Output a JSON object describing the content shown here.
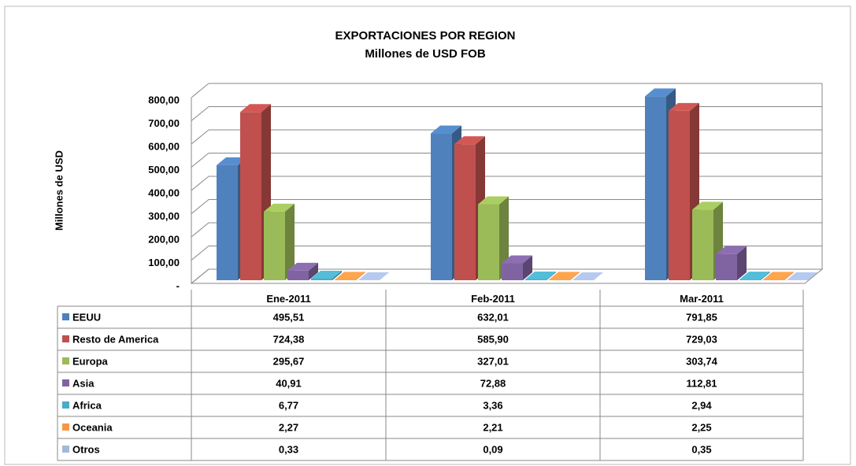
{
  "chart_data": {
    "type": "bar3d",
    "title": "EXPORTACIONES POR REGION",
    "subtitle": "Millones de USD FOB",
    "y_label": "Millones de USD",
    "categories": [
      "Ene-2011",
      "Feb-2011",
      "Mar-2011"
    ],
    "series": [
      {
        "name": "EEUU",
        "color": "#4f81bd",
        "values": [
          495.51,
          632.01,
          791.85
        ],
        "value_labels": [
          "495,51",
          "632,01",
          "791,85"
        ]
      },
      {
        "name": "Resto de America",
        "color": "#c0504d",
        "values": [
          724.38,
          585.9,
          729.03
        ],
        "value_labels": [
          "724,38",
          "585,90",
          "729,03"
        ]
      },
      {
        "name": "Europa",
        "color": "#9bbb59",
        "values": [
          295.67,
          327.01,
          303.74
        ],
        "value_labels": [
          "295,67",
          "327,01",
          "303,74"
        ]
      },
      {
        "name": "Asia",
        "color": "#8064a2",
        "values": [
          40.91,
          72.88,
          112.81
        ],
        "value_labels": [
          "40,91",
          "72,88",
          "112,81"
        ]
      },
      {
        "name": "Africa",
        "color": "#4bacc6",
        "values": [
          6.77,
          3.36,
          2.94
        ],
        "value_labels": [
          "6,77",
          "3,36",
          "2,94"
        ]
      },
      {
        "name": "Oceania",
        "color": "#f79646",
        "values": [
          2.27,
          2.21,
          2.25
        ],
        "value_labels": [
          "2,27",
          "2,21",
          "2,25"
        ]
      },
      {
        "name": "Otros",
        "color": "#a5b7db",
        "values": [
          0.33,
          0.09,
          0.35
        ],
        "value_labels": [
          "0,33",
          "0,09",
          "0,35"
        ]
      }
    ],
    "ylim": [
      0,
      800
    ],
    "yticks": [
      {
        "value": 0,
        "label": "-"
      },
      {
        "value": 100,
        "label": "100,00"
      },
      {
        "value": 200,
        "label": "200,00"
      },
      {
        "value": 300,
        "label": "300,00"
      },
      {
        "value": 400,
        "label": "400,00"
      },
      {
        "value": 500,
        "label": "500,00"
      },
      {
        "value": 600,
        "label": "600,00"
      },
      {
        "value": 700,
        "label": "700,00"
      },
      {
        "value": 800,
        "label": "800,00"
      }
    ],
    "grid": true
  }
}
